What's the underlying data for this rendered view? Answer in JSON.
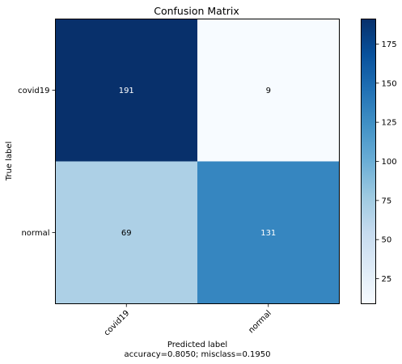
{
  "chart_data": {
    "type": "heatmap",
    "title": "Confusion Matrix",
    "xlabel": "Predicted label",
    "xlabel_sub": "accuracy=0.8050; misclass=0.1950",
    "ylabel": "True label",
    "x_categories": [
      "covid19",
      "normal"
    ],
    "y_categories": [
      "covid19",
      "normal"
    ],
    "values": [
      [
        191,
        9
      ],
      [
        69,
        131
      ]
    ],
    "colormap": "Blues",
    "colorbar": {
      "range": [
        9,
        191
      ],
      "ticks": [
        25,
        50,
        75,
        100,
        125,
        150,
        175
      ]
    },
    "grid": false
  }
}
